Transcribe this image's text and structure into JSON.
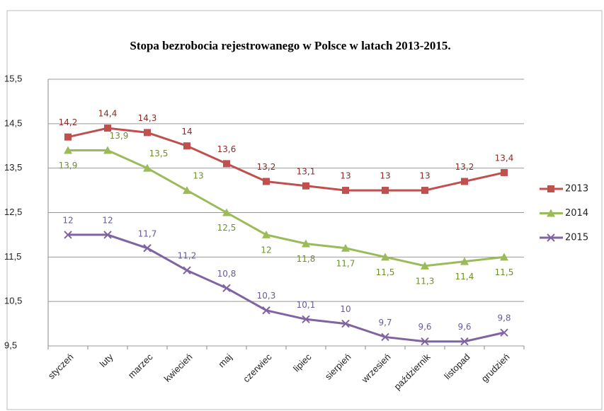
{
  "chart_data": {
    "type": "line",
    "title": "Stopa bezrobocia rejestrowanego w Polsce w latach 2013-2015.",
    "categories": [
      "styczeń",
      "luty",
      "marzec",
      "kwiecień",
      "maj",
      "czerwiec",
      "lipiec",
      "sierpień",
      "wrzesień",
      "październik",
      "listopad",
      "grudzień"
    ],
    "series": [
      {
        "name": "2013",
        "color": "#c0504d",
        "marker": "square",
        "values": [
          14.2,
          14.4,
          14.3,
          14,
          13.6,
          13.2,
          13.1,
          13,
          13,
          13,
          13.2,
          13.4
        ],
        "value_labels": [
          "14,2",
          "14,4",
          "14,3",
          "14",
          "13,6",
          "13,2",
          "13,1",
          "13",
          "13",
          "13",
          "13,2",
          "13,4"
        ]
      },
      {
        "name": "2014",
        "color": "#9bbb59",
        "marker": "triangle",
        "values": [
          13.9,
          13.9,
          13.5,
          13,
          12.5,
          12,
          11.8,
          11.7,
          11.5,
          11.3,
          11.4,
          11.5
        ],
        "value_labels": [
          "13,9",
          "13,9",
          "13,5",
          "13",
          "12,5",
          "12",
          "11,8",
          "11,7",
          "11,5",
          "11,3",
          "11,4",
          "11,5"
        ]
      },
      {
        "name": "2015",
        "color": "#8064a2",
        "marker": "x",
        "values": [
          12,
          12,
          11.7,
          11.2,
          10.8,
          10.3,
          10.1,
          10,
          9.7,
          9.6,
          9.6,
          9.8
        ],
        "value_labels": [
          "12",
          "12",
          "11,7",
          "11,2",
          "10,8",
          "10,3",
          "10,1",
          "10",
          "9,7",
          "9,6",
          "9,6",
          "9,8"
        ]
      }
    ],
    "ylim": [
      9.5,
      15.5
    ],
    "yticks": [
      {
        "value": 9.5,
        "label": "9,5"
      },
      {
        "value": 10.5,
        "label": "10,5"
      },
      {
        "value": 11.5,
        "label": "11,5"
      },
      {
        "value": 12.5,
        "label": "12,5"
      },
      {
        "value": 13.5,
        "label": "13,5"
      },
      {
        "value": 14.5,
        "label": "14,5"
      },
      {
        "value": 15.5,
        "label": "15,5"
      }
    ],
    "grid": true,
    "legend": "right"
  }
}
